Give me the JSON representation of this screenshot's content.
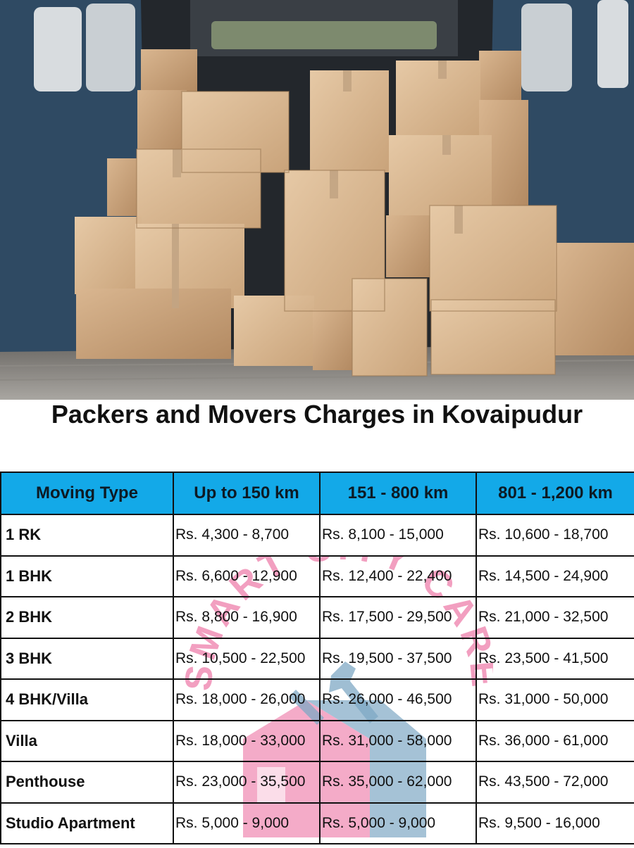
{
  "title": "Packers and Movers Charges in Kovaipudur",
  "watermark_text": "SMART CITY CARE",
  "colors": {
    "header_bg": "#13a9e8",
    "watermark_pink": "#f08fb6",
    "watermark_blue": "#7fa8c4"
  },
  "table": {
    "headers": [
      "Moving Type",
      "Up to 150 km",
      "151 - 800 km",
      "801 - 1,200 km"
    ],
    "rows": [
      {
        "type": "1 RK",
        "c1": "Rs. 4,300 - 8,700",
        "c2": "Rs. 8,100 - 15,000",
        "c3": "Rs. 10,600 - 18,700"
      },
      {
        "type": "1 BHK",
        "c1": "Rs. 6,600 - 12,900",
        "c2": "Rs. 12,400 - 22,400",
        "c3": "Rs. 14,500 - 24,900"
      },
      {
        "type": "2 BHK",
        "c1": "Rs. 8,800 - 16,900",
        "c2": "Rs. 17,500 - 29,500",
        "c3": "Rs. 21,000 - 32,500"
      },
      {
        "type": "3 BHK",
        "c1": "Rs. 10,500 - 22,500",
        "c2": "Rs. 19,500 - 37,500",
        "c3": "Rs. 23,500 - 41,500"
      },
      {
        "type": "4 BHK/Villa",
        "c1": "Rs. 18,000 - 26,000",
        "c2": "Rs. 26,000 - 46,500",
        "c3": "Rs. 31,000 - 50,000"
      },
      {
        "type": "Villa",
        "c1": "Rs. 18,000 - 33,000",
        "c2": "Rs. 31,000 - 58,000",
        "c3": "Rs. 36,000 - 61,000"
      },
      {
        "type": "Penthouse",
        "c1": "Rs. 23,000 - 35,500",
        "c2": "Rs. 35,000 - 62,000",
        "c3": "Rs. 43,500 - 72,000"
      },
      {
        "type": "Studio Apartment",
        "c1": "Rs. 5,000 - 9,000",
        "c2": "Rs. 5,000 - 9,000",
        "c3": "Rs. 9,500 - 16,000"
      }
    ]
  }
}
